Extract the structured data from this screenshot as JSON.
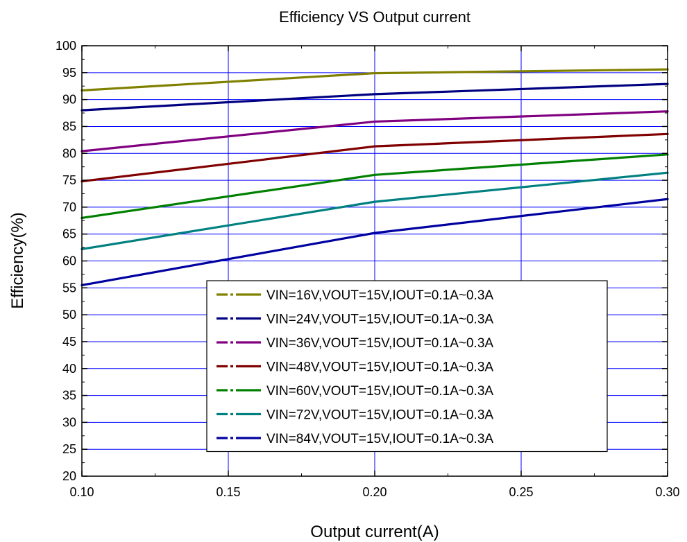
{
  "chart_data": {
    "type": "line",
    "title": "Efficiency VS Output current",
    "xlabel": "Output current(A)",
    "ylabel": "Efficiency(%)",
    "xlim": [
      0.1,
      0.3
    ],
    "ylim": [
      20,
      100
    ],
    "xticks": [
      "0.10",
      "0.15",
      "0.20",
      "0.25",
      "0.30"
    ],
    "yticks": [
      "20",
      "25",
      "30",
      "35",
      "40",
      "45",
      "50",
      "55",
      "60",
      "65",
      "70",
      "75",
      "80",
      "85",
      "90",
      "95",
      "100"
    ],
    "grid": true,
    "legend_position": "lower-center",
    "x": [
      0.1,
      0.2,
      0.3
    ],
    "series": [
      {
        "name": "VIN=16V,VOUT=15V,IOUT=0.1A~0.3A",
        "color": "#808000",
        "values": [
          91.7,
          94.9,
          95.6
        ]
      },
      {
        "name": "VIN=24V,VOUT=15V,IOUT=0.1A~0.3A",
        "color": "#000080",
        "values": [
          88.0,
          91.0,
          92.9
        ]
      },
      {
        "name": "VIN=36V,VOUT=15V,IOUT=0.1A~0.3A",
        "color": "#800080",
        "values": [
          80.4,
          85.9,
          87.8
        ]
      },
      {
        "name": "VIN=48V,VOUT=15V,IOUT=0.1A~0.3A",
        "color": "#800000",
        "values": [
          74.8,
          81.3,
          83.6
        ]
      },
      {
        "name": "VIN=60V,VOUT=15V,IOUT=0.1A~0.3A",
        "color": "#008000",
        "values": [
          68.0,
          76.0,
          79.8
        ]
      },
      {
        "name": "VIN=72V,VOUT=15V,IOUT=0.1A~0.3A",
        "color": "#008080",
        "values": [
          62.2,
          71.0,
          76.4
        ]
      },
      {
        "name": "VIN=84V,VOUT=15V,IOUT=0.1A~0.3A",
        "color": "#0000A0",
        "values": [
          55.5,
          65.2,
          71.5
        ]
      }
    ]
  }
}
